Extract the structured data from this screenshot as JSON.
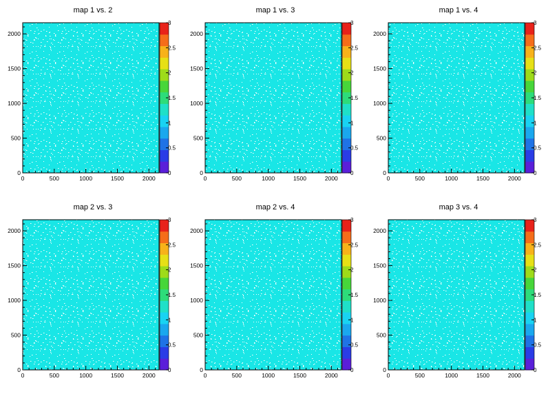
{
  "palette": [
    "#5a1fd9",
    "#2a3ce6",
    "#1f73e6",
    "#1aa8ee",
    "#19d3f2",
    "#1fe0c8",
    "#2ddc7a",
    "#47d63a",
    "#9edb1a",
    "#e6e016",
    "#f7b21a",
    "#f56d1a",
    "#e8221a"
  ],
  "heatmap_color": "#19e6e6",
  "chart_data": [
    {
      "type": "heatmap",
      "title": "map 1 vs. 2",
      "xlim": [
        0,
        2160
      ],
      "ylim": [
        0,
        2160
      ],
      "zlim": [
        0,
        3
      ],
      "dominant_value": 1,
      "xticks": [
        0,
        500,
        1000,
        1500,
        2000
      ],
      "yticks": [
        0,
        500,
        1000,
        1500,
        2000
      ],
      "zticks": [
        0,
        0.5,
        1,
        1.5,
        2,
        2.5,
        3
      ]
    },
    {
      "type": "heatmap",
      "title": "map 1 vs. 3",
      "xlim": [
        0,
        2160
      ],
      "ylim": [
        0,
        2160
      ],
      "zlim": [
        0,
        3
      ],
      "dominant_value": 1,
      "xticks": [
        0,
        500,
        1000,
        1500,
        2000
      ],
      "yticks": [
        0,
        500,
        1000,
        1500,
        2000
      ],
      "zticks": [
        0,
        0.5,
        1,
        1.5,
        2,
        2.5,
        3
      ]
    },
    {
      "type": "heatmap",
      "title": "map 1 vs. 4",
      "xlim": [
        0,
        2160
      ],
      "ylim": [
        0,
        2160
      ],
      "zlim": [
        0,
        3
      ],
      "dominant_value": 1,
      "xticks": [
        0,
        500,
        1000,
        1500,
        2000
      ],
      "yticks": [
        0,
        500,
        1000,
        1500,
        2000
      ],
      "zticks": [
        0,
        0.5,
        1,
        1.5,
        2,
        2.5,
        3
      ]
    },
    {
      "type": "heatmap",
      "title": "map 2 vs. 3",
      "xlim": [
        0,
        2160
      ],
      "ylim": [
        0,
        2160
      ],
      "zlim": [
        0,
        3
      ],
      "dominant_value": 1,
      "xticks": [
        0,
        500,
        1000,
        1500,
        2000
      ],
      "yticks": [
        0,
        500,
        1000,
        1500,
        2000
      ],
      "zticks": [
        0,
        0.5,
        1,
        1.5,
        2,
        2.5,
        3
      ]
    },
    {
      "type": "heatmap",
      "title": "map 2 vs. 4",
      "xlim": [
        0,
        2160
      ],
      "ylim": [
        0,
        2160
      ],
      "zlim": [
        0,
        3
      ],
      "dominant_value": 1,
      "xticks": [
        0,
        500,
        1000,
        1500,
        2000
      ],
      "yticks": [
        0,
        500,
        1000,
        1500,
        2000
      ],
      "zticks": [
        0,
        0.5,
        1,
        1.5,
        2,
        2.5,
        3
      ]
    },
    {
      "type": "heatmap",
      "title": "map 3 vs. 4",
      "xlim": [
        0,
        2160
      ],
      "ylim": [
        0,
        2160
      ],
      "zlim": [
        0,
        3
      ],
      "dominant_value": 1,
      "xticks": [
        0,
        500,
        1000,
        1500,
        2000
      ],
      "yticks": [
        0,
        500,
        1000,
        1500,
        2000
      ],
      "zticks": [
        0,
        0.5,
        1,
        1.5,
        2,
        2.5,
        3
      ]
    }
  ]
}
